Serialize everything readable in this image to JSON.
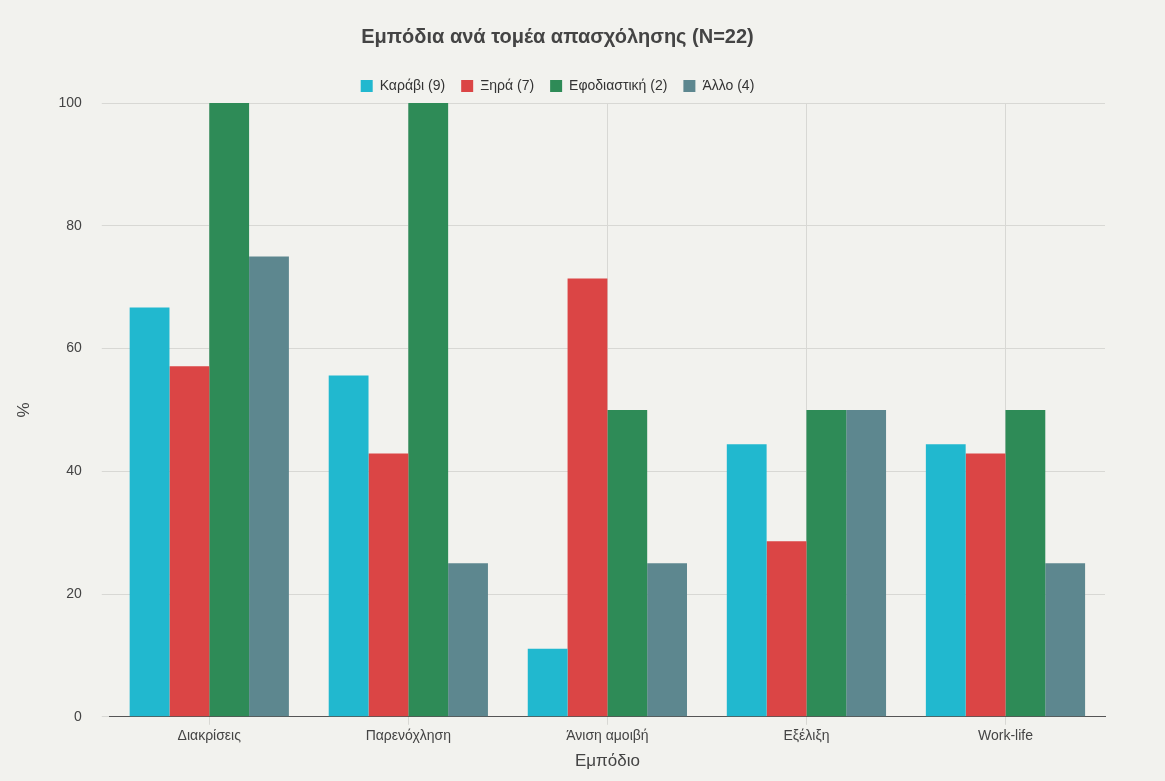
{
  "chart_data": {
    "type": "bar",
    "title": "Εμπόδια ανά τομέα απασχόλησης (N=22)",
    "xlabel": "Εμπόδιο",
    "ylabel": "%",
    "categories": [
      "Διακρίσεις",
      "Παρενόχληση",
      "Άνιση αμοιβή",
      "Εξέλιξη",
      "Work-life"
    ],
    "series": [
      {
        "name": "Καράβι (9)",
        "color": "#21b8cf",
        "values": [
          66.7,
          55.6,
          11.1,
          44.4,
          44.4
        ]
      },
      {
        "name": "Ξηρά (7)",
        "color": "#db4545",
        "values": [
          57.1,
          42.9,
          71.4,
          28.6,
          42.9
        ]
      },
      {
        "name": "Εφοδιαστική (2)",
        "color": "#2e8b57",
        "values": [
          100,
          100,
          50,
          50,
          50
        ]
      },
      {
        "name": "Άλλο (4)",
        "color": "#5d878f",
        "values": [
          75,
          25,
          25,
          50,
          25
        ]
      }
    ],
    "ylim": [
      0,
      100
    ],
    "yticks": [
      0,
      20,
      40,
      60,
      80,
      100
    ],
    "grid": true,
    "legend": "top"
  }
}
